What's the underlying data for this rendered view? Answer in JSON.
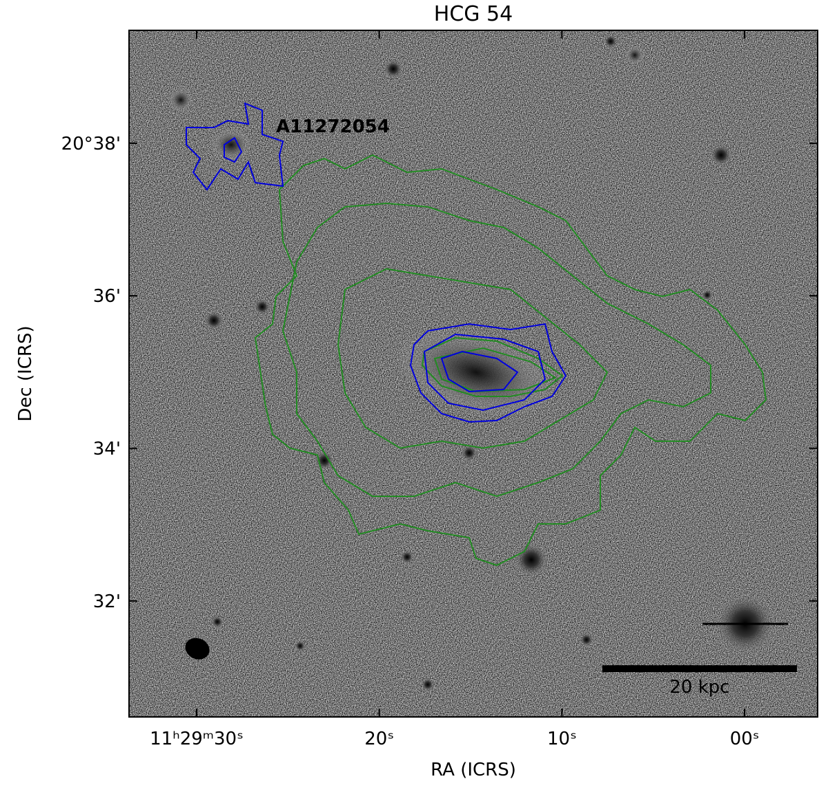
{
  "chart_data": {
    "type": "image",
    "title": "HCG 54",
    "xlabel": "RA (ICRS)",
    "ylabel": "Dec (ICRS)",
    "xlim": [
      33.7,
      -4.0
    ],
    "ylim": [
      30.48,
      39.48
    ],
    "xticks": [
      {
        "value": 30,
        "label": "11ʰ29ᵐ30ˢ"
      },
      {
        "value": 20,
        "label": "20ˢ"
      },
      {
        "value": 10,
        "label": "10ˢ"
      },
      {
        "value": 0,
        "label": "00ˢ"
      }
    ],
    "yticks": [
      {
        "value": 32,
        "label": "32'"
      },
      {
        "value": 34,
        "label": "34'"
      },
      {
        "value": 36,
        "label": "36'"
      },
      {
        "value": 38,
        "label": "20°38'"
      }
    ],
    "annotations": [
      "A11272054",
      "20 kpc"
    ]
  }
}
